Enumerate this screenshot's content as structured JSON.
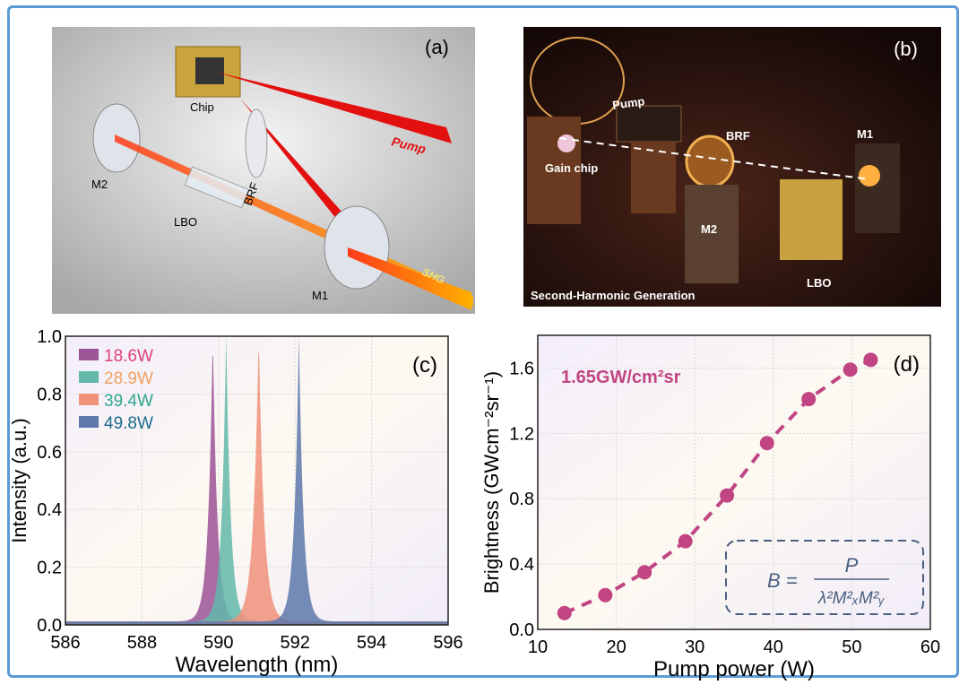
{
  "panel_a": {
    "label": "(a)",
    "parts": {
      "chip": "Chip",
      "pump": "Pump",
      "brf": "BRF",
      "m2": "M2",
      "lbo": "LBO",
      "m1": "M1",
      "shg": "SHG"
    }
  },
  "panel_b": {
    "label": "(b)",
    "parts": {
      "pump": "Pump",
      "brf": "BRF",
      "m1": "M1",
      "gain_chip": "Gain chip",
      "m2": "M2",
      "lbo": "LBO"
    },
    "caption": "Second-Harmonic Generation"
  },
  "chart_data": [
    {
      "panel": "(c)",
      "type": "area",
      "xlabel": "Wavelength (nm)",
      "ylabel": "Intensity (a.u.)",
      "xlim": [
        586,
        596
      ],
      "ylim": [
        0,
        1.0
      ],
      "xticks": [
        "586",
        "588",
        "590",
        "592",
        "594",
        "596"
      ],
      "yticks": [
        "0.0",
        "0.2",
        "0.4",
        "0.6",
        "0.8",
        "1.0"
      ],
      "grid": true,
      "legend_position": "top-left",
      "series": [
        {
          "name": "18.6W",
          "peak_nm": 589.85,
          "peak_intensity": 1.0,
          "fwhm_nm": 0.3,
          "color": "#9c5497",
          "label_color": "#e0407a"
        },
        {
          "name": "28.9W",
          "peak_nm": 590.2,
          "peak_intensity": 1.0,
          "fwhm_nm": 0.3,
          "color": "#62b9a9",
          "label_color": "#f0a060"
        },
        {
          "name": "39.4W",
          "peak_nm": 591.05,
          "peak_intensity": 1.0,
          "fwhm_nm": 0.35,
          "color": "#f0917a",
          "label_color": "#2ea590"
        },
        {
          "name": "49.8W",
          "peak_nm": 592.1,
          "peak_intensity": 1.0,
          "fwhm_nm": 0.3,
          "color": "#5d78ab",
          "label_color": "#1b6a8c"
        }
      ]
    },
    {
      "panel": "(d)",
      "type": "scatter",
      "xlabel": "Pump power (W)",
      "ylabel": "Brightness (GWcm⁻²sr⁻¹)",
      "xlim": [
        10,
        60
      ],
      "ylim": [
        0,
        1.8
      ],
      "xticks": [
        "10",
        "20",
        "30",
        "40",
        "50",
        "60"
      ],
      "yticks": [
        "0.0",
        "0.4",
        "0.8",
        "1.2",
        "1.6"
      ],
      "grid": true,
      "annotation": "1.65GW/cm²sr",
      "formula": {
        "lhs": "B =",
        "numerator": "P",
        "denominator": "λ²M²ₓM²ᵧ"
      },
      "color": "#c04582",
      "line_style": "dashed",
      "x": [
        13.4,
        18.6,
        23.6,
        28.8,
        34.1,
        39.2,
        44.5,
        49.8,
        52.4
      ],
      "y": [
        0.1,
        0.21,
        0.35,
        0.54,
        0.82,
        1.14,
        1.41,
        1.59,
        1.65
      ]
    }
  ]
}
